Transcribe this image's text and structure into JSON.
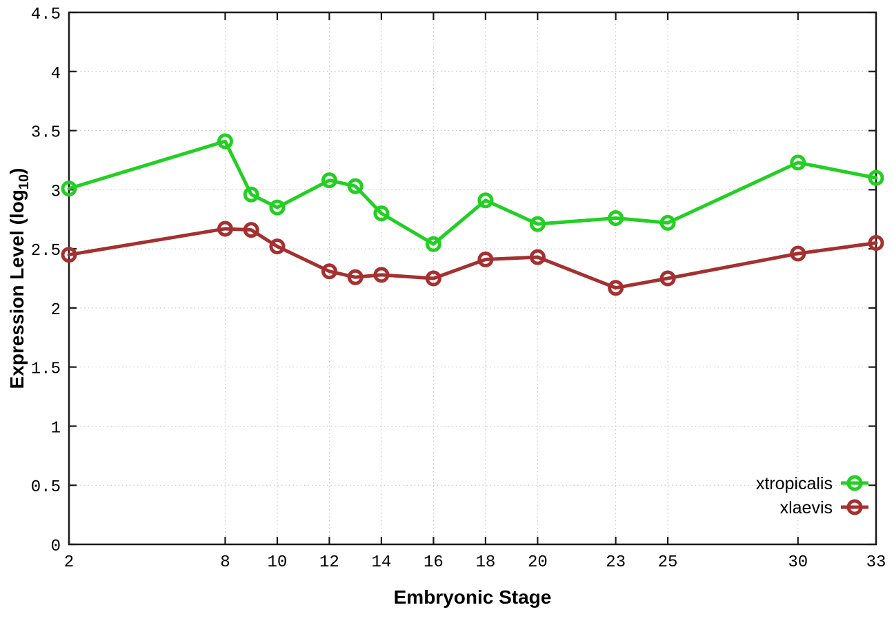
{
  "page": {
    "background": "#ffffff"
  },
  "chart_data": {
    "type": "line",
    "title": "",
    "xlabel": "Embryonic Stage",
    "ylabel": "Expression Level (log10)",
    "ylabel_parts": {
      "main": "Expression Level (log",
      "sub": "10",
      "end": ")"
    },
    "x": [
      2,
      8,
      9,
      10,
      12,
      13,
      14,
      16,
      18,
      20,
      23,
      25,
      30,
      33
    ],
    "series": [
      {
        "name": "xtropicalis",
        "color": "#23cf23",
        "marker": "open-circle",
        "values": [
          3.01,
          3.41,
          2.96,
          2.85,
          3.08,
          3.03,
          2.8,
          2.54,
          2.91,
          2.71,
          2.76,
          2.72,
          3.23,
          3.1
        ]
      },
      {
        "name": "xlaevis",
        "color": "#a53030",
        "marker": "open-circle",
        "values": [
          2.45,
          2.67,
          2.66,
          2.52,
          2.31,
          2.26,
          2.28,
          2.25,
          2.41,
          2.43,
          2.17,
          2.25,
          2.46,
          2.55
        ]
      }
    ],
    "xticks": [
      2,
      8,
      10,
      12,
      14,
      16,
      18,
      20,
      23,
      25,
      30,
      33
    ],
    "yticks": [
      0,
      0.5,
      1,
      1.5,
      2,
      2.5,
      3,
      3.5,
      4,
      4.5
    ],
    "xlim": [
      2,
      33
    ],
    "ylim": [
      0,
      4.5
    ],
    "grid": true,
    "legend_position": "bottom-right",
    "legend_entries": [
      "xtropicalis",
      "xlaevis"
    ]
  },
  "style": {
    "axis_color": "#1a1a1a",
    "grid_color": "#bfbfbf",
    "text_color": "#000000"
  }
}
